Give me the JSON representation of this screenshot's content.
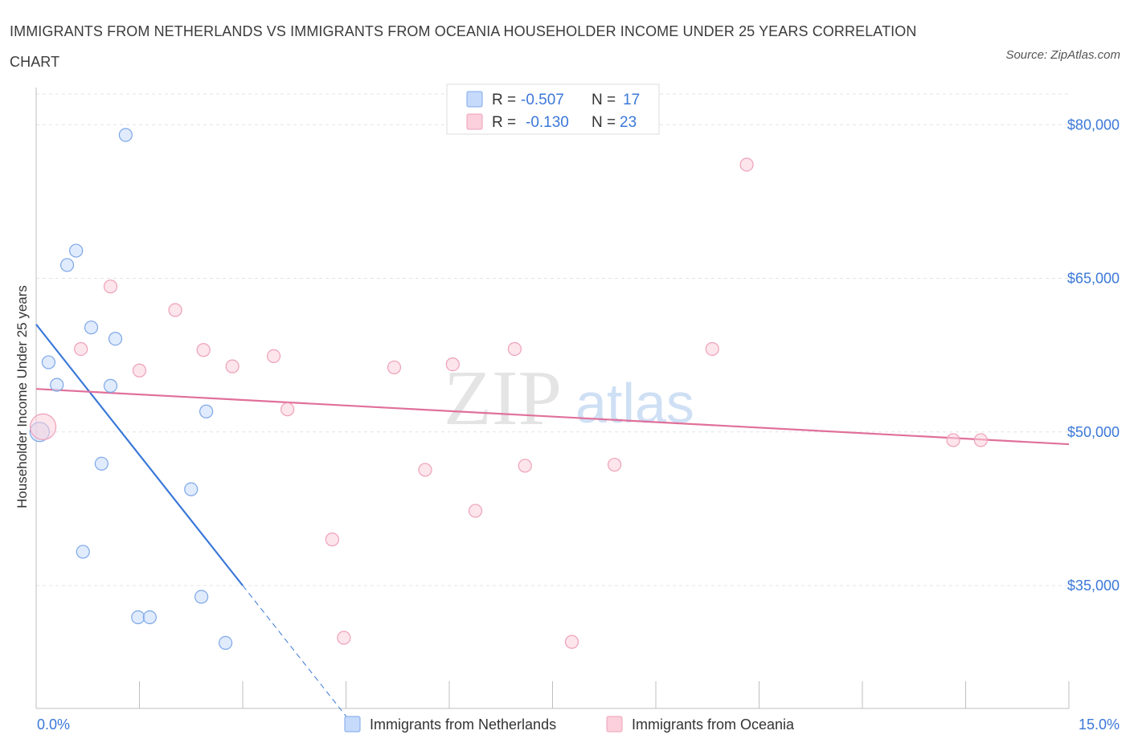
{
  "title": "IMMIGRANTS FROM NETHERLANDS VS IMMIGRANTS FROM OCEANIA HOUSEHOLDER INCOME UNDER 25 YEARS CORRELATION CHART",
  "source": "Source: ZipAtlas.com",
  "watermark": {
    "zip": "ZIP",
    "atlas": "atlas"
  },
  "legend": {
    "rows": [
      {
        "r_label": "R =",
        "r_value": "-0.507",
        "n_label": "N =",
        "n_value": "17"
      },
      {
        "r_label": "R =",
        "r_value": "-0.130",
        "n_label": "N =",
        "n_value": "23"
      }
    ]
  },
  "chart_data": {
    "type": "scatter",
    "title": "IMMIGRANTS FROM NETHERLANDS VS IMMIGRANTS FROM OCEANIA HOUSEHOLDER INCOME UNDER 25 YEARS CORRELATION CHART",
    "xlabel": "",
    "ylabel": "Householder Income Under 25 years",
    "xlim": [
      0,
      15
    ],
    "ylim": [
      23000,
      83000
    ],
    "x_tick_labels": [
      "0.0%",
      "15.0%"
    ],
    "y_ticks": [
      35000,
      50000,
      65000,
      80000
    ],
    "y_tick_labels": [
      "$35,000",
      "$50,000",
      "$65,000",
      "$80,000"
    ],
    "grid": true,
    "legend_position": "bottom",
    "colors": {
      "netherlands": "#a4c2f4",
      "netherlands_line": "#3a78d8",
      "oceania": "#f4b6c8",
      "oceania_line": "#e0709a"
    },
    "series": [
      {
        "name": "Immigrants from Netherlands",
        "points": [
          {
            "x": 0.05,
            "y": 50000
          },
          {
            "x": 0.18,
            "y": 56800
          },
          {
            "x": 0.3,
            "y": 54600
          },
          {
            "x": 0.45,
            "y": 66300
          },
          {
            "x": 0.58,
            "y": 67700
          },
          {
            "x": 0.68,
            "y": 38300
          },
          {
            "x": 0.8,
            "y": 60200
          },
          {
            "x": 0.95,
            "y": 46900
          },
          {
            "x": 1.08,
            "y": 54500
          },
          {
            "x": 1.15,
            "y": 59100
          },
          {
            "x": 1.3,
            "y": 79000
          },
          {
            "x": 1.48,
            "y": 31900
          },
          {
            "x": 1.65,
            "y": 31900
          },
          {
            "x": 2.25,
            "y": 44400
          },
          {
            "x": 2.4,
            "y": 33900
          },
          {
            "x": 2.47,
            "y": 52000
          },
          {
            "x": 2.75,
            "y": 29400
          }
        ],
        "trend": {
          "x0": 0.0,
          "y0": 60500,
          "x1": 3.0,
          "y1": 35000,
          "dash_to_x": 4.6
        }
      },
      {
        "name": "Immigrants from Oceania",
        "points": [
          {
            "x": 0.1,
            "y": 50500
          },
          {
            "x": 0.65,
            "y": 58100
          },
          {
            "x": 1.08,
            "y": 64200
          },
          {
            "x": 1.5,
            "y": 56000
          },
          {
            "x": 2.02,
            "y": 61900
          },
          {
            "x": 2.43,
            "y": 58000
          },
          {
            "x": 2.85,
            "y": 56400
          },
          {
            "x": 3.45,
            "y": 57400
          },
          {
            "x": 3.65,
            "y": 52200
          },
          {
            "x": 4.3,
            "y": 39500
          },
          {
            "x": 4.47,
            "y": 29900
          },
          {
            "x": 5.2,
            "y": 56300
          },
          {
            "x": 5.65,
            "y": 46300
          },
          {
            "x": 6.05,
            "y": 56600
          },
          {
            "x": 6.38,
            "y": 42300
          },
          {
            "x": 6.95,
            "y": 58100
          },
          {
            "x": 7.1,
            "y": 46700
          },
          {
            "x": 7.78,
            "y": 29500
          },
          {
            "x": 8.4,
            "y": 46800
          },
          {
            "x": 9.82,
            "y": 58100
          },
          {
            "x": 10.32,
            "y": 76100
          },
          {
            "x": 13.32,
            "y": 49200
          },
          {
            "x": 13.72,
            "y": 49200
          }
        ],
        "trend": {
          "x0": 0.0,
          "y0": 54200,
          "x1": 15.0,
          "y1": 48800
        }
      }
    ]
  }
}
